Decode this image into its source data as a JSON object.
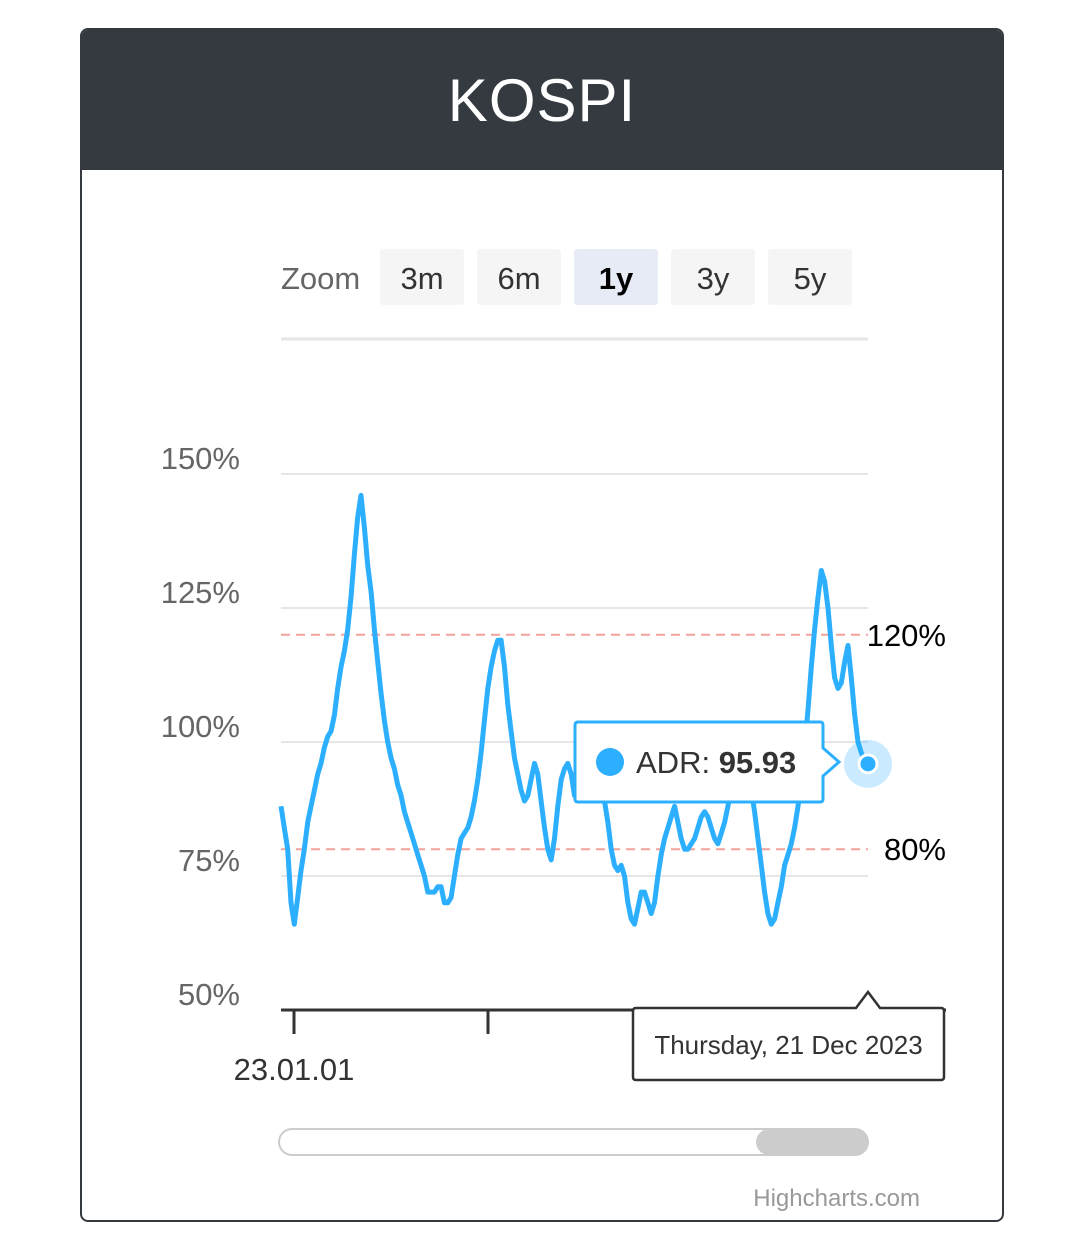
{
  "header": {
    "title": "KOSPI"
  },
  "zoom": {
    "label": "Zoom",
    "buttons": [
      {
        "label": "3m",
        "active": false
      },
      {
        "label": "6m",
        "active": false
      },
      {
        "label": "1y",
        "active": true
      },
      {
        "label": "3y",
        "active": false
      },
      {
        "label": "5y",
        "active": false
      }
    ]
  },
  "colors": {
    "series": "#2caffe",
    "header_bg": "#343a40",
    "plot_line": "#f2a29b",
    "grid": "#e6e6e6",
    "active_zoom": "#e6ebf5"
  },
  "chart_data": {
    "type": "line",
    "title": "KOSPI",
    "xlabel": "",
    "ylabel": "",
    "ylim": [
      50,
      150
    ],
    "yticks": [
      "150%",
      "125%",
      "100%",
      "75%",
      "50%"
    ],
    "xtick_labels": [
      "23.01.01"
    ],
    "grid": true,
    "plot_lines": [
      {
        "value": 120,
        "label": "120%"
      },
      {
        "value": 80,
        "label": "80%"
      }
    ],
    "series": [
      {
        "name": "ADR",
        "values": [
          88,
          84,
          80,
          70,
          66,
          71,
          76,
          80,
          85,
          88,
          91,
          94,
          96,
          99,
          101,
          102,
          105,
          110,
          114,
          117,
          121,
          127,
          135,
          142,
          146,
          140,
          133,
          128,
          121,
          115,
          109,
          104,
          100,
          97,
          95,
          92,
          90,
          87,
          85,
          83,
          81,
          79,
          77,
          75,
          72,
          72,
          72,
          73,
          73,
          70,
          70,
          71,
          75,
          79,
          82,
          83,
          84,
          86,
          89,
          93,
          98,
          104,
          110,
          114,
          117,
          119,
          119,
          114,
          107,
          102,
          97,
          94,
          91,
          89,
          90,
          93,
          96,
          94,
          89,
          84,
          80,
          78,
          82,
          88,
          93,
          95,
          96,
          94,
          90,
          92,
          95,
          95,
          96,
          97,
          95,
          93,
          92,
          89,
          85,
          80,
          77,
          76,
          77,
          75,
          70,
          67,
          66,
          69,
          72,
          72,
          70,
          68,
          70,
          75,
          79,
          82,
          84,
          86,
          88,
          85,
          82,
          80,
          80,
          81,
          82,
          84,
          86,
          87,
          86,
          84,
          82,
          81,
          83,
          85,
          88,
          91,
          94,
          96,
          96,
          95,
          94,
          91,
          87,
          82,
          77,
          72,
          68,
          66,
          67,
          70,
          73,
          77,
          79,
          81,
          84,
          88,
          93,
          99,
          106,
          114,
          121,
          127,
          132,
          130,
          125,
          118,
          112,
          110,
          111,
          115,
          118,
          112,
          105,
          100,
          98,
          96.5,
          95.93
        ]
      }
    ],
    "tooltip": {
      "series_name": "ADR",
      "value": "95.93",
      "date": "Thursday, 21 Dec 2023"
    },
    "navigator": {
      "selected_fraction_start": 0.81,
      "selected_fraction_end": 1.0
    },
    "credits": "Highcharts.com"
  }
}
